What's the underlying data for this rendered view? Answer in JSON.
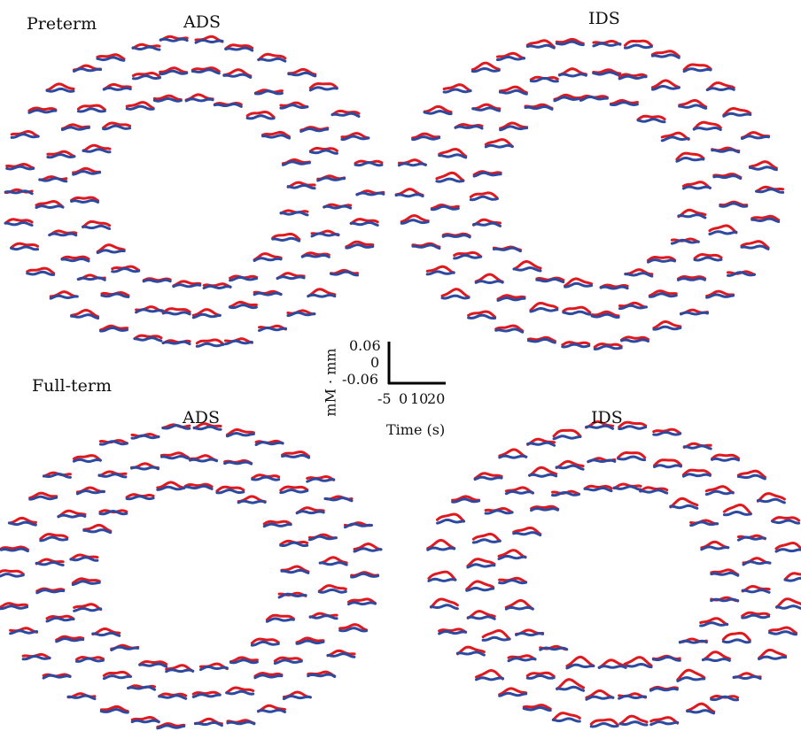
{
  "figure": {
    "group_labels": {
      "preterm": "Preterm",
      "fullterm": "Full-term"
    },
    "condition_labels": {
      "ads": "ADS",
      "ids": "IDS"
    },
    "colors": {
      "red_trace": "#e0191f",
      "blue_trace": "#2b4aa0"
    }
  },
  "chart_data": {
    "type": "line",
    "description_of_marks": "grid of small per-channel hemodynamic response waveforms arranged in four ring-shaped probe layouts",
    "panels": [
      "Preterm ADS",
      "Preterm IDS",
      "Full-term ADS",
      "Full-term IDS"
    ],
    "scale_bar": {
      "y_ticks": [
        "0.06",
        "0",
        "-0.06"
      ],
      "x_ticks": [
        "-5",
        "0",
        "10",
        "20"
      ],
      "y_label": "mM · mm",
      "x_label": "Time (s)",
      "y_range": [
        -0.06,
        0.06
      ],
      "x_range": [
        -5,
        20
      ]
    },
    "series": [
      {
        "name": "",
        "color": "#e0191f"
      },
      {
        "name": "",
        "color": "#2b4aa0"
      }
    ]
  }
}
